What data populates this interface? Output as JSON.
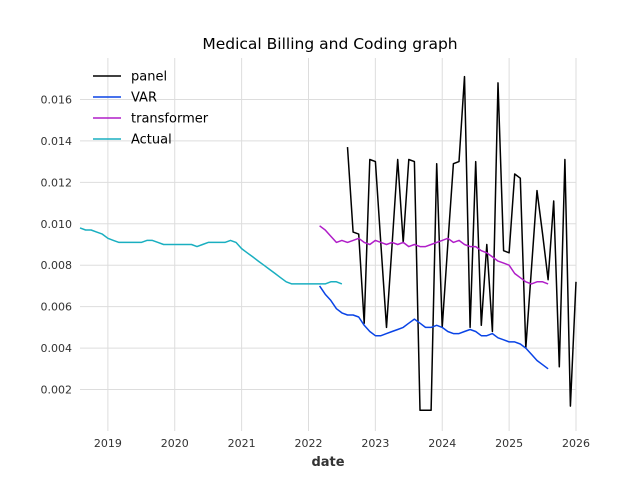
{
  "chart_data": {
    "type": "line",
    "title": "Medical Billing and Coding graph",
    "xlabel": "date",
    "ylabel": "",
    "xlim": [
      "2018-08-01",
      "2026-01-01"
    ],
    "ylim": [
      0.0,
      0.018
    ],
    "x_ticks": [
      "2019",
      "2020",
      "2021",
      "2022",
      "2023",
      "2024",
      "2025",
      "2026"
    ],
    "y_ticks": [
      "0.002",
      "0.004",
      "0.006",
      "0.008",
      "0.010",
      "0.012",
      "0.014",
      "0.016"
    ],
    "grid": true,
    "legend_position": "top-left",
    "series": [
      {
        "name": "panel",
        "color": "#000000",
        "points": [
          [
            "2022-08-01",
            0.0137
          ],
          [
            "2022-09-01",
            0.0096
          ],
          [
            "2022-10-01",
            0.0095
          ],
          [
            "2022-11-01",
            0.0052
          ],
          [
            "2022-12-01",
            0.0131
          ],
          [
            "2023-01-01",
            0.013
          ],
          [
            "2023-02-01",
            0.009
          ],
          [
            "2023-03-01",
            0.005
          ],
          [
            "2023-04-01",
            0.009
          ],
          [
            "2023-05-01",
            0.0131
          ],
          [
            "2023-06-01",
            0.0091
          ],
          [
            "2023-07-01",
            0.0131
          ],
          [
            "2023-08-01",
            0.013
          ],
          [
            "2023-09-01",
            0.001
          ],
          [
            "2023-10-01",
            0.001
          ],
          [
            "2023-11-01",
            0.001
          ],
          [
            "2023-12-01",
            0.0129
          ],
          [
            "2024-01-01",
            0.005
          ],
          [
            "2024-02-01",
            0.009
          ],
          [
            "2024-03-01",
            0.0129
          ],
          [
            "2024-04-01",
            0.013
          ],
          [
            "2024-05-01",
            0.0171
          ],
          [
            "2024-06-01",
            0.005
          ],
          [
            "2024-07-01",
            0.013
          ],
          [
            "2024-08-01",
            0.0051
          ],
          [
            "2024-09-01",
            0.009
          ],
          [
            "2024-10-01",
            0.0048
          ],
          [
            "2024-11-01",
            0.0168
          ],
          [
            "2024-12-01",
            0.0087
          ],
          [
            "2025-01-01",
            0.0086
          ],
          [
            "2025-02-01",
            0.0124
          ],
          [
            "2025-03-01",
            0.0122
          ],
          [
            "2025-04-01",
            0.004
          ],
          [
            "2025-05-01",
            0.0078
          ],
          [
            "2025-06-01",
            0.0116
          ],
          [
            "2025-07-01",
            0.0095
          ],
          [
            "2025-08-01",
            0.0073
          ],
          [
            "2025-09-01",
            0.0111
          ],
          [
            "2025-10-01",
            0.0031
          ],
          [
            "2025-11-01",
            0.0131
          ],
          [
            "2025-12-01",
            0.0012
          ],
          [
            "2026-01-01",
            0.0072
          ]
        ]
      },
      {
        "name": "VAR",
        "color": "#0a44e6",
        "points": [
          [
            "2022-03-01",
            0.007
          ],
          [
            "2022-04-01",
            0.0066
          ],
          [
            "2022-05-01",
            0.0063
          ],
          [
            "2022-06-01",
            0.0059
          ],
          [
            "2022-07-01",
            0.0057
          ],
          [
            "2022-08-01",
            0.0056
          ],
          [
            "2022-09-01",
            0.0056
          ],
          [
            "2022-10-01",
            0.0055
          ],
          [
            "2022-11-01",
            0.0051
          ],
          [
            "2022-12-01",
            0.0048
          ],
          [
            "2023-01-01",
            0.0046
          ],
          [
            "2023-02-01",
            0.0046
          ],
          [
            "2023-03-01",
            0.0047
          ],
          [
            "2023-04-01",
            0.0048
          ],
          [
            "2023-05-01",
            0.0049
          ],
          [
            "2023-06-01",
            0.005
          ],
          [
            "2023-07-01",
            0.0052
          ],
          [
            "2023-08-01",
            0.0054
          ],
          [
            "2023-09-01",
            0.0052
          ],
          [
            "2023-10-01",
            0.005
          ],
          [
            "2023-11-01",
            0.005
          ],
          [
            "2023-12-01",
            0.0051
          ],
          [
            "2024-01-01",
            0.005
          ],
          [
            "2024-02-01",
            0.0048
          ],
          [
            "2024-03-01",
            0.0047
          ],
          [
            "2024-04-01",
            0.0047
          ],
          [
            "2024-05-01",
            0.0048
          ],
          [
            "2024-06-01",
            0.0049
          ],
          [
            "2024-07-01",
            0.0048
          ],
          [
            "2024-08-01",
            0.0046
          ],
          [
            "2024-09-01",
            0.0046
          ],
          [
            "2024-10-01",
            0.0047
          ],
          [
            "2024-11-01",
            0.0045
          ],
          [
            "2024-12-01",
            0.0044
          ],
          [
            "2025-01-01",
            0.0043
          ],
          [
            "2025-02-01",
            0.0043
          ],
          [
            "2025-03-01",
            0.0042
          ],
          [
            "2025-04-01",
            0.004
          ],
          [
            "2025-05-01",
            0.0037
          ],
          [
            "2025-06-01",
            0.0034
          ],
          [
            "2025-07-01",
            0.0032
          ],
          [
            "2025-08-01",
            0.003
          ]
        ]
      },
      {
        "name": "transformer",
        "color": "#b01ec8",
        "points": [
          [
            "2022-03-01",
            0.0099
          ],
          [
            "2022-04-01",
            0.0097
          ],
          [
            "2022-05-01",
            0.0094
          ],
          [
            "2022-06-01",
            0.0091
          ],
          [
            "2022-07-01",
            0.0092
          ],
          [
            "2022-08-01",
            0.0091
          ],
          [
            "2022-09-01",
            0.0092
          ],
          [
            "2022-10-01",
            0.0093
          ],
          [
            "2022-11-01",
            0.0091
          ],
          [
            "2022-12-01",
            0.009
          ],
          [
            "2023-01-01",
            0.0092
          ],
          [
            "2023-02-01",
            0.0091
          ],
          [
            "2023-03-01",
            0.009
          ],
          [
            "2023-04-01",
            0.0091
          ],
          [
            "2023-05-01",
            0.009
          ],
          [
            "2023-06-01",
            0.0091
          ],
          [
            "2023-07-01",
            0.0089
          ],
          [
            "2023-08-01",
            0.009
          ],
          [
            "2023-09-01",
            0.0089
          ],
          [
            "2023-10-01",
            0.0089
          ],
          [
            "2023-11-01",
            0.009
          ],
          [
            "2023-12-01",
            0.0091
          ],
          [
            "2024-01-01",
            0.0092
          ],
          [
            "2024-02-01",
            0.0093
          ],
          [
            "2024-03-01",
            0.0091
          ],
          [
            "2024-04-01",
            0.0092
          ],
          [
            "2024-05-01",
            0.009
          ],
          [
            "2024-06-01",
            0.0089
          ],
          [
            "2024-07-01",
            0.0089
          ],
          [
            "2024-08-01",
            0.0087
          ],
          [
            "2024-09-01",
            0.0086
          ],
          [
            "2024-10-01",
            0.0084
          ],
          [
            "2024-11-01",
            0.0082
          ],
          [
            "2024-12-01",
            0.0081
          ],
          [
            "2025-01-01",
            0.008
          ],
          [
            "2025-02-01",
            0.0076
          ],
          [
            "2025-03-01",
            0.0074
          ],
          [
            "2025-04-01",
            0.0072
          ],
          [
            "2025-05-01",
            0.0071
          ],
          [
            "2025-06-01",
            0.0072
          ],
          [
            "2025-07-01",
            0.0072
          ],
          [
            "2025-08-01",
            0.0071
          ]
        ]
      },
      {
        "name": "Actual",
        "color": "#1aafc0",
        "points": [
          [
            "2018-08-01",
            0.0098
          ],
          [
            "2018-09-01",
            0.0097
          ],
          [
            "2018-10-01",
            0.0097
          ],
          [
            "2018-11-01",
            0.0096
          ],
          [
            "2018-12-01",
            0.0095
          ],
          [
            "2019-01-01",
            0.0093
          ],
          [
            "2019-02-01",
            0.0092
          ],
          [
            "2019-03-01",
            0.0091
          ],
          [
            "2019-04-01",
            0.0091
          ],
          [
            "2019-05-01",
            0.0091
          ],
          [
            "2019-06-01",
            0.0091
          ],
          [
            "2019-07-01",
            0.0091
          ],
          [
            "2019-08-01",
            0.0092
          ],
          [
            "2019-09-01",
            0.0092
          ],
          [
            "2019-10-01",
            0.0091
          ],
          [
            "2019-11-01",
            0.009
          ],
          [
            "2019-12-01",
            0.009
          ],
          [
            "2020-01-01",
            0.009
          ],
          [
            "2020-02-01",
            0.009
          ],
          [
            "2020-03-01",
            0.009
          ],
          [
            "2020-04-01",
            0.009
          ],
          [
            "2020-05-01",
            0.0089
          ],
          [
            "2020-06-01",
            0.009
          ],
          [
            "2020-07-01",
            0.0091
          ],
          [
            "2020-08-01",
            0.0091
          ],
          [
            "2020-09-01",
            0.0091
          ],
          [
            "2020-10-01",
            0.0091
          ],
          [
            "2020-11-01",
            0.0092
          ],
          [
            "2020-12-01",
            0.0091
          ],
          [
            "2021-01-01",
            0.0088
          ],
          [
            "2021-02-01",
            0.0086
          ],
          [
            "2021-03-01",
            0.0084
          ],
          [
            "2021-04-01",
            0.0082
          ],
          [
            "2021-05-01",
            0.008
          ],
          [
            "2021-06-01",
            0.0078
          ],
          [
            "2021-07-01",
            0.0076
          ],
          [
            "2021-08-01",
            0.0074
          ],
          [
            "2021-09-01",
            0.0072
          ],
          [
            "2021-10-01",
            0.0071
          ],
          [
            "2021-11-01",
            0.0071
          ],
          [
            "2021-12-01",
            0.0071
          ],
          [
            "2022-01-01",
            0.0071
          ],
          [
            "2022-02-01",
            0.0071
          ],
          [
            "2022-03-01",
            0.0071
          ],
          [
            "2022-04-01",
            0.0071
          ],
          [
            "2022-05-01",
            0.0072
          ],
          [
            "2022-06-01",
            0.0072
          ],
          [
            "2022-07-01",
            0.0071
          ]
        ]
      }
    ]
  }
}
